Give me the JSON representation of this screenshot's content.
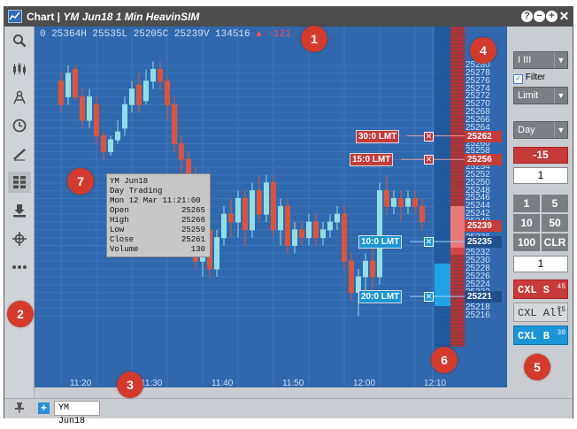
{
  "window": {
    "title_plain": "Chart | ",
    "title_italic": "YM Jun18 1 Min HeavinSIM"
  },
  "chart": {
    "info_text": "0  25364H  25535L  25205C  25239V  134516",
    "info_delta": "▲ -121",
    "price_ticks": [
      25280,
      25278,
      25276,
      25274,
      25272,
      25270,
      25268,
      25266,
      25264,
      25262,
      25260,
      25258,
      25256,
      25254,
      25252,
      25250,
      25248,
      25246,
      25244,
      25242,
      25240,
      25238,
      25236,
      25234,
      25232,
      25230,
      25228,
      25226,
      25224,
      25222,
      25220,
      25218,
      25216
    ],
    "time_ticks": [
      "11:20",
      "11:30",
      "11:40",
      "11:50",
      "12:00",
      "12:10"
    ],
    "price_tags": [
      {
        "text": "25262",
        "color": "#c63a3a"
      },
      {
        "text": "25256",
        "color": "#c63a3a"
      },
      {
        "text": "25239",
        "color": "#c63a3a"
      },
      {
        "text": "25235",
        "color": "#1f4f8a"
      },
      {
        "text": "25221",
        "color": "#1f4f8a"
      }
    ],
    "orders": [
      {
        "label": "30:0 LMT",
        "side": "sell"
      },
      {
        "label": "15:0 LMT",
        "side": "sell"
      },
      {
        "label": "10:0 LMT",
        "side": "buy"
      },
      {
        "label": "20:0 LMT",
        "side": "buy"
      }
    ],
    "tooltip": {
      "symbol": "YM Jun18",
      "session": "Day Trading",
      "datetime": "Mon 12 Mar 11:21:00",
      "rows": [
        {
          "k": "Open",
          "v": "25265"
        },
        {
          "k": "High",
          "v": "25266"
        },
        {
          "k": "Low",
          "v": "25259"
        },
        {
          "k": "Close",
          "v": "25261"
        },
        {
          "k": "Volume",
          "v": "130"
        }
      ]
    }
  },
  "order_panel": {
    "account_value": "I              III",
    "filter_label": "Filter",
    "order_type": "Limit",
    "tif": "Day",
    "position": "-15",
    "quantity": "1",
    "qty_buttons": [
      "1",
      "5",
      "10",
      "50",
      "100",
      "CLR"
    ],
    "offset": "1",
    "cxl_sell": {
      "label": "CXL S",
      "count": "45"
    },
    "cxl_all": {
      "label": "CXL All",
      "count": "75"
    },
    "cxl_buy": {
      "label": "CXL B",
      "count": "30"
    }
  },
  "tabs": [
    {
      "label": "YM Jun18"
    }
  ],
  "badges": [
    "1",
    "2",
    "3",
    "4",
    "5",
    "6",
    "7"
  ],
  "colors": {
    "chart_bg": "#2f68ad",
    "bull": "#8fe0e6",
    "bear": "#e0533b",
    "sell": "#c63a3a",
    "buy": "#1b95d6"
  }
}
